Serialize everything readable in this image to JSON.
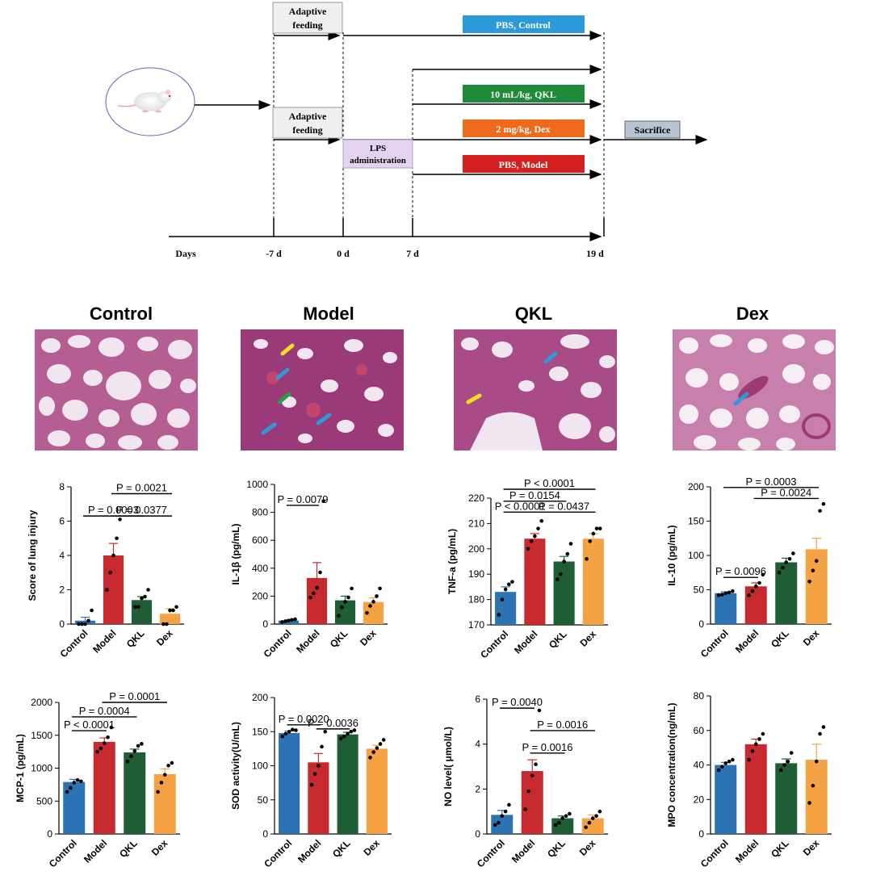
{
  "timeline": {
    "boxes": {
      "adaptive1": [
        "Adaptive",
        "feeding"
      ],
      "adaptive2": [
        "Adaptive",
        "feeding"
      ],
      "lps": [
        "LPS",
        "administration"
      ],
      "pbs_control": "PBS, Control",
      "qkl": "10 mL/kg, QKL",
      "dex": "2 mg/kg, Dex",
      "pbs_model": "PBS, Model",
      "sacrifice": "Sacrifice"
    },
    "axis_labels": [
      "Days",
      "-7 d",
      "0 d",
      "7 d",
      "19 d"
    ],
    "colors": {
      "control": "#2d9ad8",
      "qkl": "#1e8a3c",
      "dex": "#ee6a1c",
      "model": "#d42020",
      "lps": "#e3d3ee",
      "adaptive": "#efefef",
      "sacrifice": "#b8c4d2"
    },
    "mouse_icon": "mouse-icon"
  },
  "histology": {
    "titles": [
      "Control",
      "Model",
      "QKL",
      "Dex"
    ]
  },
  "bar_colors": {
    "Control": "#2b73b3",
    "Model": "#c62a2e",
    "QKL": "#1f5e35",
    "Dex": "#f4a244"
  },
  "chart_data": [
    {
      "type": "bar",
      "categories": [
        "Control",
        "Model",
        "QKL",
        "Dex"
      ],
      "values": [
        0.2,
        4.0,
        1.4,
        0.6
      ],
      "errors": [
        0.2,
        0.7,
        0.2,
        0.3
      ],
      "points": [
        [
          0,
          0,
          0,
          0.2,
          0.8
        ],
        [
          2,
          3,
          4,
          5,
          6.1
        ],
        [
          1.0,
          1.0,
          1.5,
          1.6,
          2.0
        ],
        [
          0,
          0,
          0.8,
          0.8,
          1.0
        ]
      ],
      "ylabel": "Score of lung injury",
      "ylim": [
        0,
        8
      ],
      "yticks": [
        0,
        2,
        4,
        6,
        8
      ],
      "annotations": [
        {
          "text": "P = 0.0003",
          "from": 0,
          "to": 2,
          "y": 6.3
        },
        {
          "text": "P = 0.0021",
          "from": 1,
          "to": 3,
          "y": 7.6
        },
        {
          "text": "P = 0.0377",
          "from": 1,
          "to": 3,
          "y": 6.3
        }
      ]
    },
    {
      "type": "bar",
      "categories": [
        "Control",
        "Model",
        "QKL",
        "Dex"
      ],
      "values": [
        25,
        330,
        170,
        158
      ],
      "errors": [
        5,
        110,
        30,
        30
      ],
      "points": [
        [
          15,
          20,
          25,
          30,
          35
        ],
        [
          190,
          220,
          260,
          370,
          880
        ],
        [
          60,
          120,
          160,
          190,
          255
        ],
        [
          80,
          130,
          160,
          200,
          255
        ]
      ],
      "ylabel": "IL-1β (pg/mL)",
      "ylim": [
        0,
        1000
      ],
      "yticks": [
        0,
        200,
        400,
        600,
        800,
        1000
      ],
      "annotations": [
        {
          "text": "P = 0.0079",
          "from": 0,
          "to": 1,
          "y": 850
        }
      ]
    },
    {
      "type": "bar",
      "categories": [
        "Control",
        "Model",
        "QKL",
        "Dex"
      ],
      "values": [
        183,
        204,
        195,
        204
      ],
      "errors": [
        2,
        2,
        2,
        2
      ],
      "points": [
        [
          174,
          180,
          184,
          186,
          187
        ],
        [
          200,
          203,
          205,
          208,
          211
        ],
        [
          188,
          190,
          195,
          198,
          202
        ],
        [
          196,
          203,
          206,
          208,
          208
        ]
      ],
      "ylabel": "TNF-a (pg/mL)",
      "ylim": [
        170,
        220
      ],
      "yticks": [
        170,
        180,
        190,
        200,
        210,
        220
      ],
      "annotations": [
        {
          "text": "P < 0.0001",
          "from": 0,
          "to": 3,
          "y": 223.5
        },
        {
          "text": "P = 0.0154",
          "from": 0,
          "to": 2,
          "y": 218.8
        },
        {
          "text": "P < 0.0001",
          "from": 0,
          "to": 1,
          "y": 214.5
        },
        {
          "text": "P = 0.0437",
          "from": 1,
          "to": 3,
          "y": 214.5
        }
      ]
    },
    {
      "type": "bar",
      "categories": [
        "Control",
        "Model",
        "QKL",
        "Dex"
      ],
      "values": [
        45,
        55,
        90,
        109
      ],
      "errors": [
        2,
        5,
        6,
        16
      ],
      "points": [
        [
          42,
          43,
          45,
          46,
          48
        ],
        [
          42,
          48,
          55,
          60,
          72
        ],
        [
          75,
          82,
          90,
          95,
          103
        ],
        [
          62,
          78,
          92,
          165,
          175
        ]
      ],
      "ylabel": "IL-10 (pg/mL)",
      "ylim": [
        0,
        200
      ],
      "yticks": [
        0,
        50,
        100,
        150,
        200
      ],
      "annotations": [
        {
          "text": "P = 0.0003",
          "from": 0,
          "to": 3,
          "y": 199
        },
        {
          "text": "P = 0.0024",
          "from": 1,
          "to": 3,
          "y": 183
        },
        {
          "text": "P = 0.0096",
          "from": 0,
          "to": 1,
          "y": 68
        }
      ]
    },
    {
      "type": "bar",
      "categories": [
        "Control",
        "Model",
        "QKL",
        "Dex"
      ],
      "values": [
        790,
        1400,
        1240,
        910
      ],
      "errors": [
        40,
        60,
        50,
        80
      ],
      "points": [
        [
          640,
          700,
          780,
          820,
          800
        ],
        [
          1250,
          1300,
          1380,
          1470,
          1620
        ],
        [
          1100,
          1180,
          1260,
          1340,
          1370
        ],
        [
          640,
          780,
          900,
          1040,
          1080
        ]
      ],
      "ylabel": "MCP-1 (pg/mL)",
      "ylim": [
        0,
        2000
      ],
      "yticks": [
        0,
        500,
        1000,
        1500,
        2000
      ],
      "annotations": [
        {
          "text": "P = 0.0001",
          "from": 1,
          "to": 3,
          "y": 2000
        },
        {
          "text": "P = 0.0004",
          "from": 0,
          "to": 2,
          "y": 1780
        },
        {
          "text": "P < 0.0001",
          "from": 0,
          "to": 1,
          "y": 1570
        }
      ]
    },
    {
      "type": "bar",
      "categories": [
        "Control",
        "Model",
        "QKL",
        "Dex"
      ],
      "values": [
        148,
        105,
        146,
        125
      ],
      "errors": [
        3,
        13,
        3,
        5
      ],
      "points": [
        [
          143,
          147,
          150,
          153,
          152
        ],
        [
          72,
          88,
          100,
          128,
          150
        ],
        [
          140,
          143,
          147,
          150,
          152
        ],
        [
          112,
          120,
          126,
          132,
          138
        ]
      ],
      "ylabel": "SOD activity(U/mL)",
      "ylim": [
        0,
        200
      ],
      "yticks": [
        0,
        50,
        100,
        150,
        200
      ],
      "annotations": [
        {
          "text": "P = 0.0020",
          "from": 0,
          "to": 1,
          "y": 160
        },
        {
          "text": "P = 0.0036",
          "from": 1,
          "to": 2,
          "y": 154
        }
      ]
    },
    {
      "type": "bar",
      "categories": [
        "Control",
        "Model",
        "QKL",
        "Dex"
      ],
      "values": [
        0.85,
        2.8,
        0.7,
        0.7
      ],
      "errors": [
        0.2,
        0.5,
        0.1,
        0.15
      ],
      "points": [
        [
          0.4,
          0.5,
          0.8,
          1.0,
          1.3
        ],
        [
          1.1,
          1.9,
          2.6,
          3.1,
          5.5
        ],
        [
          0.4,
          0.5,
          0.7,
          0.8,
          0.9
        ],
        [
          0.3,
          0.5,
          0.7,
          0.8,
          1.0
        ]
      ],
      "ylabel": "NO level( μmol/L)",
      "ylim": [
        0,
        6
      ],
      "yticks": [
        0,
        2,
        4,
        6
      ],
      "annotations": [
        {
          "text": "P = 0.0040",
          "from": 0,
          "to": 1,
          "y": 5.6
        },
        {
          "text": "P = 0.0016",
          "from": 1,
          "to": 3,
          "y": 4.6
        },
        {
          "text": "P = 0.0016",
          "from": 1,
          "to": 2,
          "y": 3.6
        }
      ]
    },
    {
      "type": "bar",
      "categories": [
        "Control",
        "Model",
        "QKL",
        "Dex"
      ],
      "values": [
        40,
        52,
        41,
        43
      ],
      "errors": [
        1.5,
        3,
        2.5,
        9
      ],
      "points": [
        [
          37,
          39,
          41,
          42,
          43
        ],
        [
          43,
          48,
          52,
          55,
          58
        ],
        [
          37,
          40,
          42,
          47
        ],
        [
          18,
          28,
          42,
          58,
          62
        ]
      ],
      "ylabel": "MPO concentration(ng/mL)",
      "ylim": [
        0,
        80
      ],
      "yticks": [
        0,
        20,
        40,
        60,
        80
      ],
      "annotations": []
    }
  ]
}
